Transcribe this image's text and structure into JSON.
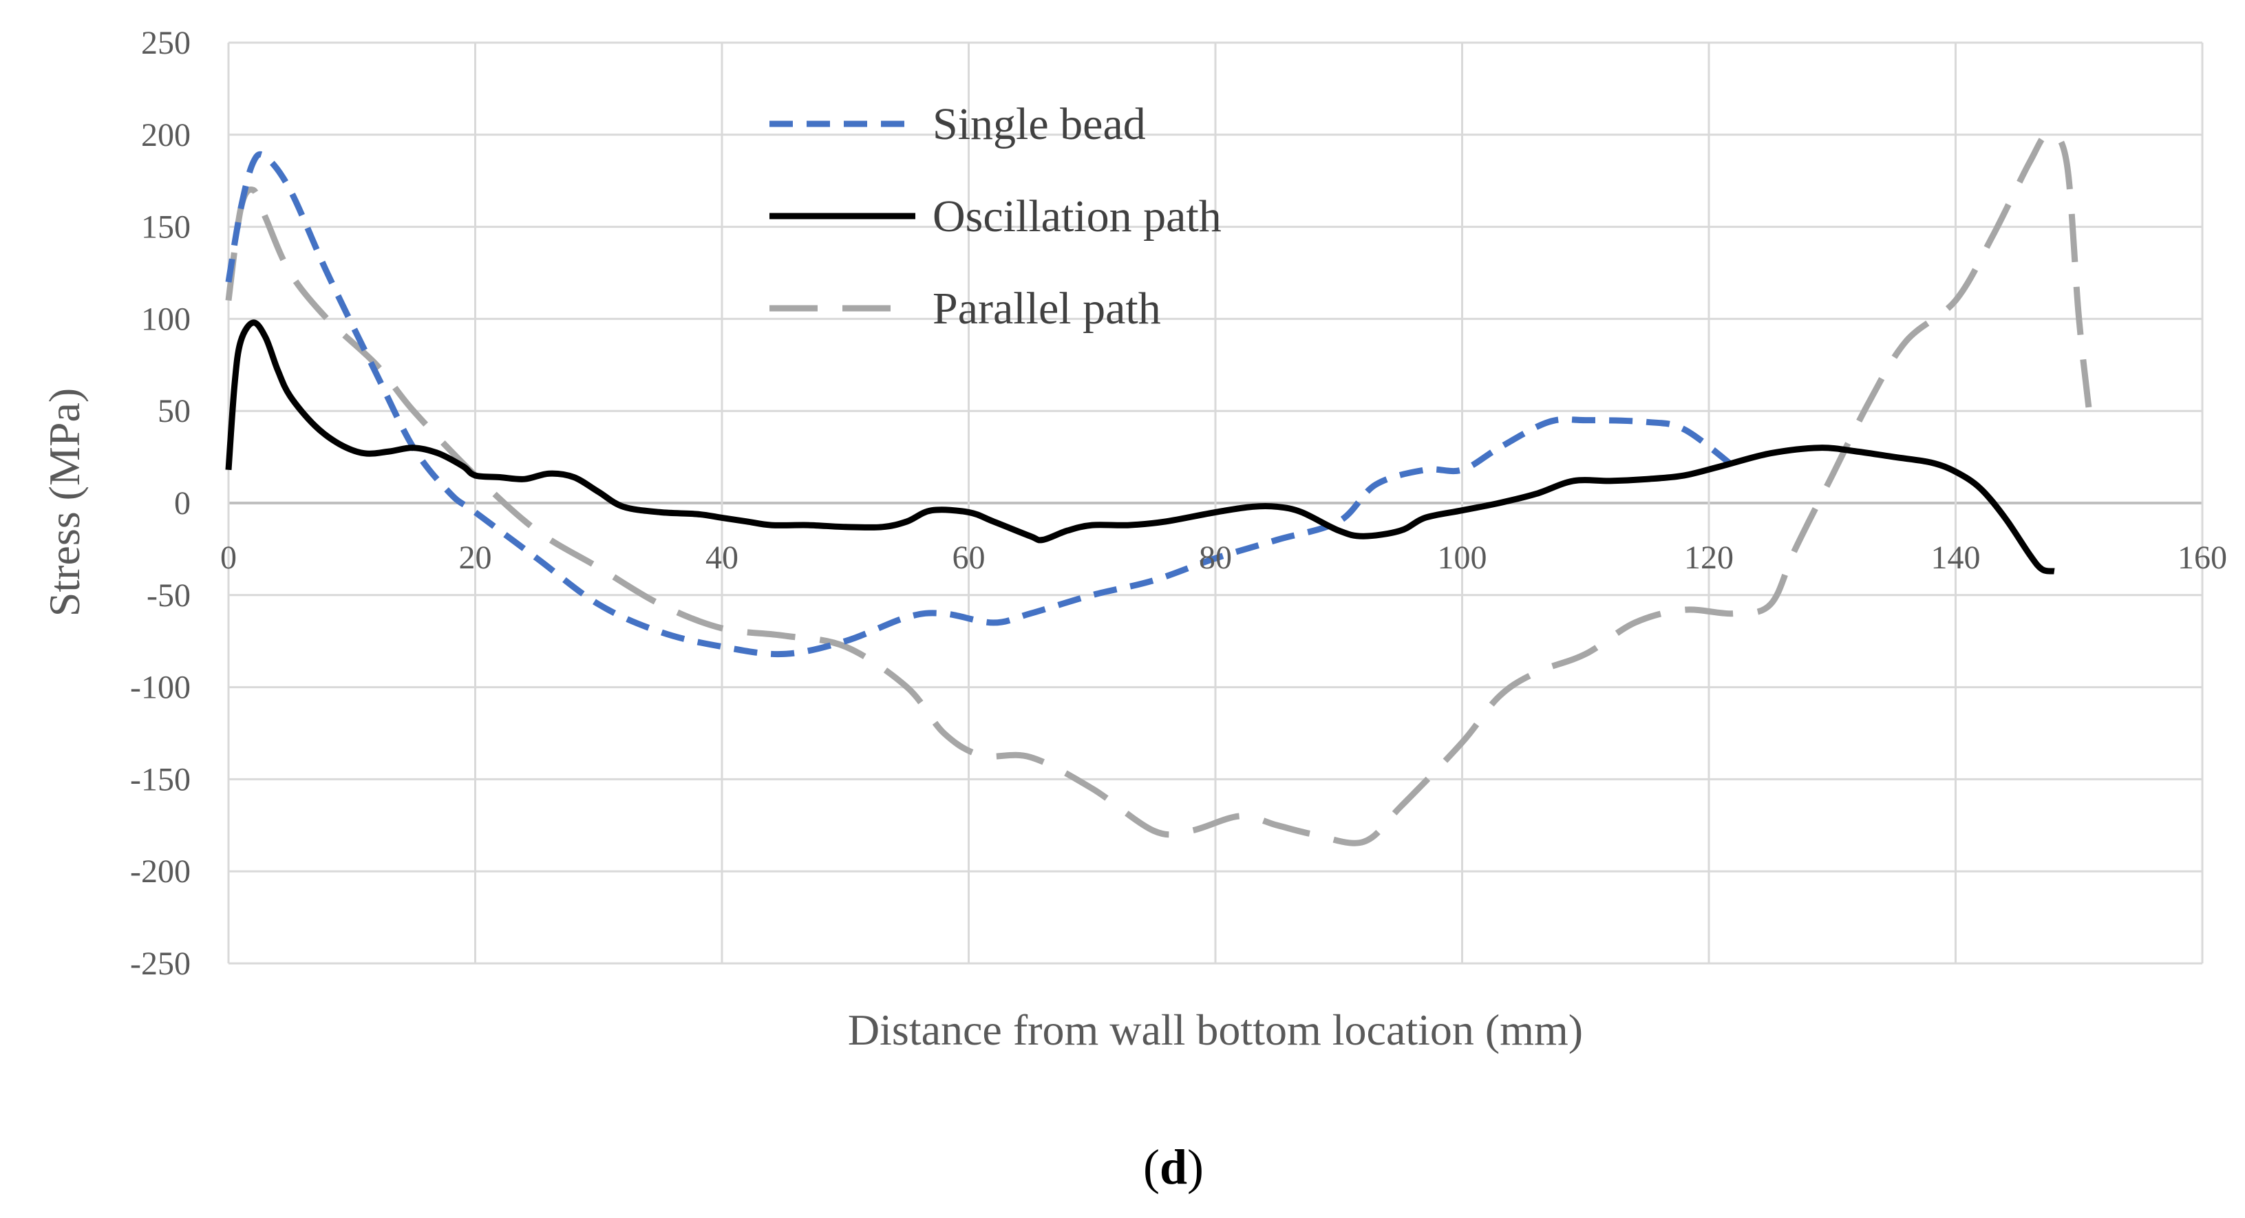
{
  "chart_data": {
    "type": "line",
    "xlabel": "Distance from wall bottom location (mm)",
    "ylabel": "Stress (MPa)",
    "xlim": [
      0,
      160
    ],
    "ylim": [
      -250,
      250
    ],
    "x_ticks": [
      0,
      20,
      40,
      60,
      80,
      100,
      120,
      140,
      160
    ],
    "y_ticks": [
      250,
      200,
      150,
      100,
      50,
      0,
      -50,
      -100,
      -150,
      -200,
      -250
    ],
    "x_tick_labels": [
      "0",
      "20",
      "40",
      "60",
      "80",
      "100",
      "120",
      "140",
      "160"
    ],
    "y_tick_labels": [
      "250",
      "200",
      "150",
      "100",
      "50",
      "0",
      "-50",
      "-100",
      "-150",
      "-200",
      "-250"
    ],
    "grid": true,
    "legend_position": "top-left",
    "panel_label": {
      "open": "(",
      "letter": "d",
      "close": ")"
    },
    "series": [
      {
        "name": "Single bead",
        "color": "#4472C4",
        "style": "dashed-short",
        "points": [
          [
            0,
            120
          ],
          [
            1,
            160
          ],
          [
            2,
            185
          ],
          [
            3,
            188
          ],
          [
            5,
            170
          ],
          [
            8,
            125
          ],
          [
            12,
            70
          ],
          [
            15,
            30
          ],
          [
            18,
            5
          ],
          [
            20,
            -5
          ],
          [
            25,
            -30
          ],
          [
            30,
            -55
          ],
          [
            35,
            -70
          ],
          [
            40,
            -78
          ],
          [
            45,
            -82
          ],
          [
            50,
            -75
          ],
          [
            55,
            -62
          ],
          [
            58,
            -60
          ],
          [
            62,
            -65
          ],
          [
            65,
            -60
          ],
          [
            70,
            -50
          ],
          [
            75,
            -42
          ],
          [
            80,
            -30
          ],
          [
            85,
            -20
          ],
          [
            90,
            -10
          ],
          [
            93,
            10
          ],
          [
            97,
            18
          ],
          [
            100,
            18
          ],
          [
            103,
            30
          ],
          [
            107,
            44
          ],
          [
            110,
            45
          ],
          [
            115,
            44
          ],
          [
            118,
            40
          ],
          [
            122,
            20
          ]
        ]
      },
      {
        "name": "Oscillation path",
        "color": "#000000",
        "style": "solid",
        "points": [
          [
            0,
            18
          ],
          [
            0.5,
            65
          ],
          [
            1,
            88
          ],
          [
            2,
            98
          ],
          [
            3,
            90
          ],
          [
            4,
            72
          ],
          [
            5,
            58
          ],
          [
            7,
            42
          ],
          [
            9,
            32
          ],
          [
            11,
            27
          ],
          [
            13,
            28
          ],
          [
            15,
            30
          ],
          [
            17,
            27
          ],
          [
            19,
            20
          ],
          [
            20,
            15
          ],
          [
            22,
            14
          ],
          [
            24,
            13
          ],
          [
            26,
            16
          ],
          [
            28,
            14
          ],
          [
            30,
            6
          ],
          [
            32,
            -2
          ],
          [
            35,
            -5
          ],
          [
            38,
            -6
          ],
          [
            40,
            -8
          ],
          [
            42,
            -10
          ],
          [
            44,
            -12
          ],
          [
            47,
            -12
          ],
          [
            50,
            -13
          ],
          [
            53,
            -13
          ],
          [
            55,
            -10
          ],
          [
            57,
            -4
          ],
          [
            60,
            -5
          ],
          [
            62,
            -10
          ],
          [
            65,
            -18
          ],
          [
            66,
            -20
          ],
          [
            68,
            -15
          ],
          [
            70,
            -12
          ],
          [
            73,
            -12
          ],
          [
            76,
            -10
          ],
          [
            80,
            -5
          ],
          [
            83,
            -2
          ],
          [
            85,
            -2
          ],
          [
            87,
            -5
          ],
          [
            90,
            -15
          ],
          [
            92,
            -18
          ],
          [
            95,
            -15
          ],
          [
            97,
            -8
          ],
          [
            100,
            -4
          ],
          [
            103,
            0
          ],
          [
            106,
            5
          ],
          [
            109,
            12
          ],
          [
            112,
            12
          ],
          [
            115,
            13
          ],
          [
            118,
            15
          ],
          [
            121,
            20
          ],
          [
            125,
            27
          ],
          [
            129,
            30
          ],
          [
            132,
            28
          ],
          [
            135,
            25
          ],
          [
            138,
            22
          ],
          [
            140,
            17
          ],
          [
            142,
            8
          ],
          [
            144,
            -8
          ],
          [
            146,
            -28
          ],
          [
            147,
            -36
          ],
          [
            148,
            -37
          ]
        ]
      },
      {
        "name": "Parallel path",
        "color": "#A6A6A6",
        "style": "dashed-long",
        "points": [
          [
            0,
            110
          ],
          [
            1,
            160
          ],
          [
            2,
            170
          ],
          [
            3,
            155
          ],
          [
            5,
            125
          ],
          [
            8,
            100
          ],
          [
            12,
            75
          ],
          [
            15,
            50
          ],
          [
            20,
            15
          ],
          [
            25,
            -15
          ],
          [
            30,
            -35
          ],
          [
            35,
            -55
          ],
          [
            40,
            -68
          ],
          [
            45,
            -72
          ],
          [
            50,
            -78
          ],
          [
            55,
            -100
          ],
          [
            58,
            -125
          ],
          [
            61,
            -137
          ],
          [
            65,
            -138
          ],
          [
            70,
            -155
          ],
          [
            75,
            -178
          ],
          [
            78,
            -178
          ],
          [
            82,
            -170
          ],
          [
            85,
            -175
          ],
          [
            88,
            -180
          ],
          [
            92,
            -184
          ],
          [
            95,
            -165
          ],
          [
            100,
            -130
          ],
          [
            103,
            -105
          ],
          [
            106,
            -92
          ],
          [
            110,
            -82
          ],
          [
            114,
            -65
          ],
          [
            118,
            -58
          ],
          [
            122,
            -60
          ],
          [
            125,
            -55
          ],
          [
            127,
            -25
          ],
          [
            130,
            15
          ],
          [
            133,
            55
          ],
          [
            136,
            88
          ],
          [
            140,
            110
          ],
          [
            143,
            145
          ],
          [
            146,
            185
          ],
          [
            147.5,
            200
          ],
          [
            149,
            185
          ],
          [
            150,
            100
          ],
          [
            151,
            40
          ]
        ]
      }
    ]
  }
}
